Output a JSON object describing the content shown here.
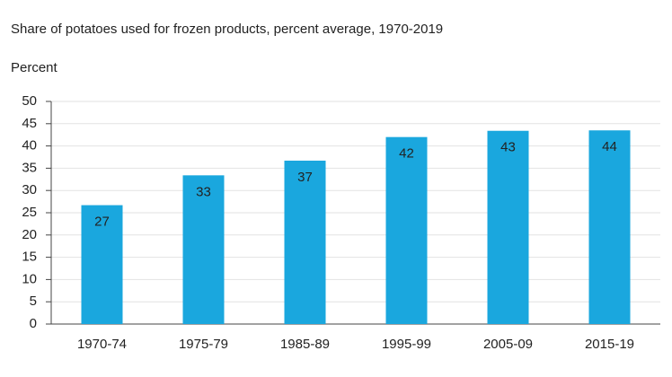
{
  "chart_data": {
    "type": "bar",
    "title": "Share of potatoes used for frozen products, percent average, 1970-2019",
    "y_label": "Percent",
    "categories": [
      "1970-74",
      "1975-79",
      "1985-89",
      "1995-99",
      "2005-09",
      "2015-19"
    ],
    "values": [
      26.7,
      33.4,
      36.7,
      42,
      43.4,
      43.5
    ],
    "value_labels": [
      "27",
      "33",
      "37",
      "42",
      "43",
      "44"
    ],
    "color": "#1aa7de",
    "ylim": [
      0,
      50
    ],
    "yticks": [
      0,
      5,
      10,
      15,
      20,
      25,
      30,
      35,
      40,
      45,
      50
    ],
    "grid": true
  }
}
